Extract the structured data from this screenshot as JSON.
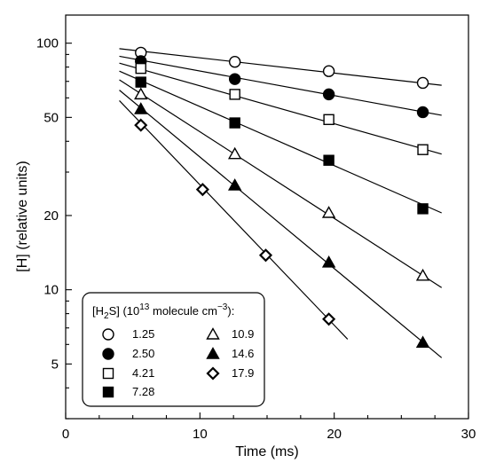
{
  "chart_data": {
    "type": "scatter",
    "title": "",
    "xlabel": "Time (ms)",
    "ylabel": "[H] (relative units)",
    "xlim": [
      0,
      30
    ],
    "ylim": [
      3,
      130
    ],
    "y_scale": "log",
    "grid": false,
    "x_ticks": [
      0,
      10,
      20,
      30
    ],
    "y_ticks": [
      5,
      10,
      20,
      50,
      100
    ],
    "legend": {
      "title_parts": {
        "open_bracket": "[H",
        "sub": "2",
        "close_bracket": "S] (10",
        "sup1": "13",
        "units": " molecule cm",
        "sup2": "−3",
        "end": "):"
      },
      "placement": "bottom-left"
    },
    "series": [
      {
        "name": "1.25",
        "marker": "open-circle",
        "points": [
          [
            5.6,
            91.5
          ],
          [
            12.6,
            84
          ],
          [
            19.6,
            77
          ],
          [
            26.6,
            69
          ]
        ],
        "fit": [
          [
            4,
            95
          ],
          [
            28,
            67.5
          ]
        ]
      },
      {
        "name": "2.50",
        "marker": "filled-circle",
        "points": [
          [
            5.6,
            84.5
          ],
          [
            12.6,
            71.5
          ],
          [
            19.6,
            62
          ],
          [
            26.6,
            52.5
          ]
        ],
        "fit": [
          [
            4,
            88.5
          ],
          [
            28,
            51
          ]
        ]
      },
      {
        "name": "4.21",
        "marker": "open-square",
        "points": [
          [
            5.6,
            79
          ],
          [
            12.6,
            62
          ],
          [
            19.6,
            49
          ],
          [
            26.6,
            37
          ]
        ],
        "fit": [
          [
            4,
            83
          ],
          [
            28,
            35.5
          ]
        ]
      },
      {
        "name": "7.28",
        "marker": "filled-square",
        "points": [
          [
            5.6,
            69.5
          ],
          [
            12.6,
            47.5
          ],
          [
            19.6,
            33.5
          ],
          [
            26.6,
            21.3
          ]
        ],
        "fit": [
          [
            4,
            77
          ],
          [
            28,
            20.5
          ]
        ]
      },
      {
        "name": "10.9",
        "marker": "open-triangle",
        "points": [
          [
            5.6,
            62
          ],
          [
            12.6,
            35.5
          ],
          [
            19.6,
            20.5
          ],
          [
            26.6,
            11.4
          ]
        ],
        "fit": [
          [
            4,
            71
          ],
          [
            28,
            10.2
          ]
        ]
      },
      {
        "name": "14.6",
        "marker": "filled-triangle",
        "points": [
          [
            5.6,
            54
          ],
          [
            12.6,
            26.5
          ],
          [
            19.6,
            12.9
          ],
          [
            26.6,
            6.1
          ]
        ],
        "fit": [
          [
            4,
            64.5
          ],
          [
            28,
            5.3
          ]
        ]
      },
      {
        "name": "17.9",
        "marker": "open-diamond",
        "points": [
          [
            5.6,
            46.5
          ],
          [
            10.2,
            25.5
          ],
          [
            14.9,
            13.8
          ],
          [
            19.6,
            7.6
          ]
        ],
        "fit": [
          [
            4,
            58.5
          ],
          [
            21,
            6.3
          ]
        ]
      }
    ]
  }
}
